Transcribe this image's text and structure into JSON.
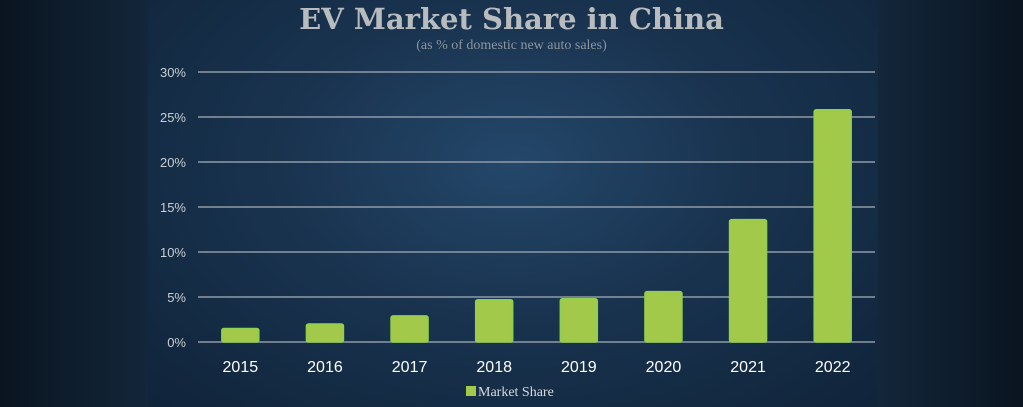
{
  "chart_data": {
    "type": "bar",
    "title": "EV Market Share in China",
    "subtitle": "(as % of domestic new auto sales)",
    "categories": [
      "2015",
      "2016",
      "2017",
      "2018",
      "2019",
      "2020",
      "2021",
      "2022"
    ],
    "series": [
      {
        "name": "Market Share",
        "values": [
          1.5,
          2.0,
          2.9,
          4.7,
          4.8,
          5.6,
          13.6,
          25.8
        ],
        "color": "#a2c94a"
      }
    ],
    "yticks": [
      "0%",
      "5%",
      "10%",
      "15%",
      "20%",
      "25%",
      "30%"
    ],
    "ytick_values": [
      0,
      5,
      10,
      15,
      20,
      25,
      30
    ],
    "ylim": [
      0,
      30
    ],
    "xlabel": "",
    "ylabel": "",
    "grid": true,
    "legend": "bottom"
  }
}
